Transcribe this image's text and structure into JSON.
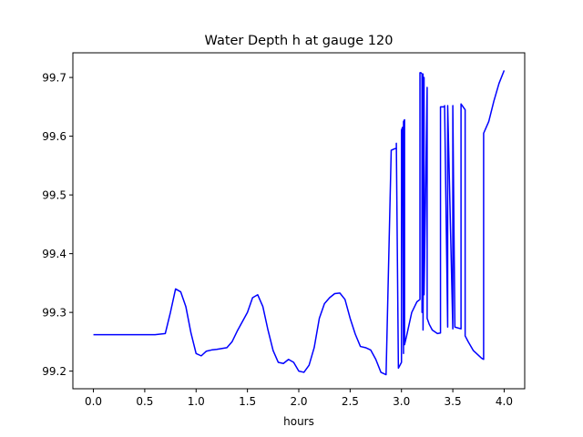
{
  "chart_data": {
    "type": "line",
    "title": "Water Depth h at gauge 120",
    "xlabel": "hours",
    "ylabel": "",
    "xlim": [
      -0.2,
      4.2
    ],
    "ylim": [
      99.17,
      99.742
    ],
    "x_ticks": [
      0.0,
      0.5,
      1.0,
      1.5,
      2.0,
      2.5,
      3.0,
      3.5,
      4.0
    ],
    "x_tick_labels": [
      "0.0",
      "0.5",
      "1.0",
      "1.5",
      "2.0",
      "2.5",
      "3.0",
      "3.5",
      "4.0"
    ],
    "y_ticks": [
      99.2,
      99.3,
      99.4,
      99.5,
      99.6,
      99.7
    ],
    "y_tick_labels": [
      "99.2",
      "99.3",
      "99.4",
      "99.5",
      "99.6",
      "99.7"
    ],
    "grid": false,
    "legend": "none",
    "series": [
      {
        "color": "#0000ff",
        "x": [
          0.0,
          0.3,
          0.6,
          0.7,
          0.75,
          0.8,
          0.85,
          0.9,
          0.95,
          1.0,
          1.05,
          1.1,
          1.15,
          1.2,
          1.3,
          1.35,
          1.4,
          1.5,
          1.55,
          1.6,
          1.65,
          1.7,
          1.75,
          1.8,
          1.85,
          1.9,
          1.95,
          2.0,
          2.05,
          2.1,
          2.15,
          2.2,
          2.25,
          2.3,
          2.35,
          2.4,
          2.45,
          2.5,
          2.55,
          2.6,
          2.65,
          2.7,
          2.75,
          2.8,
          2.85,
          2.9,
          2.9,
          2.95,
          2.95,
          2.97,
          3.0,
          3.0,
          3.01,
          3.02,
          3.02,
          3.03,
          3.03,
          3.05,
          3.1,
          3.15,
          3.18,
          3.18,
          3.19,
          3.2,
          3.2,
          3.21,
          3.21,
          3.22,
          3.22,
          3.25,
          3.25,
          3.27,
          3.3,
          3.35,
          3.38,
          3.38,
          3.42,
          3.42,
          3.45,
          3.45,
          3.5,
          3.5,
          3.52,
          3.58,
          3.58,
          3.62,
          3.62,
          3.65,
          3.7,
          3.78,
          3.8,
          3.8,
          3.85,
          3.9,
          3.95,
          4.0
        ],
        "y": [
          99.262,
          99.262,
          99.262,
          99.264,
          99.3,
          99.34,
          99.335,
          99.31,
          99.265,
          99.23,
          99.226,
          99.234,
          99.236,
          99.237,
          99.24,
          99.25,
          99.268,
          99.3,
          99.325,
          99.33,
          99.31,
          99.27,
          99.235,
          99.215,
          99.213,
          99.22,
          99.215,
          99.2,
          99.198,
          99.21,
          99.24,
          99.29,
          99.315,
          99.325,
          99.332,
          99.333,
          99.322,
          99.29,
          99.263,
          99.242,
          99.24,
          99.236,
          99.22,
          99.198,
          99.194,
          99.575,
          99.576,
          99.58,
          99.588,
          99.205,
          99.215,
          99.61,
          99.615,
          99.23,
          99.625,
          99.628,
          99.245,
          99.26,
          99.3,
          99.318,
          99.322,
          99.708,
          99.708,
          99.706,
          99.3,
          99.706,
          99.27,
          99.7,
          99.33,
          99.683,
          99.29,
          99.28,
          99.27,
          99.264,
          99.265,
          99.65,
          99.65,
          99.652,
          99.275,
          99.652,
          99.272,
          99.652,
          99.275,
          99.272,
          99.655,
          99.645,
          99.26,
          99.25,
          99.235,
          99.222,
          99.22,
          99.605,
          99.625,
          99.66,
          99.69,
          99.712
        ]
      }
    ]
  }
}
